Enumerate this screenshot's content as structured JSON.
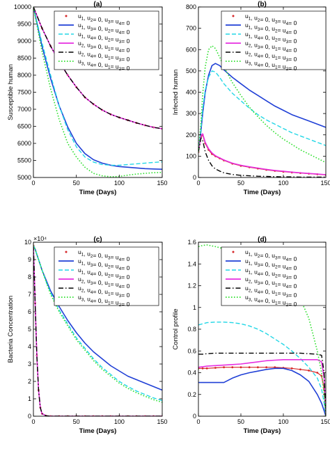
{
  "figure": {
    "legend_colors": [
      "#d62728",
      "#1f3fd6",
      "#22d7e6",
      "#e62ee0",
      "#000000",
      "#2ee02e"
    ]
  },
  "chart_data": [
    {
      "type": "line",
      "title": "(a)",
      "xlabel": "Time (Days)",
      "ylabel": "Susceptible human",
      "xlim": [
        0,
        150
      ],
      "ylim": [
        5000,
        10000
      ],
      "xticks": [
        0,
        50,
        100,
        150
      ],
      "yticks": [
        5000,
        5500,
        6000,
        6500,
        7000,
        7500,
        8000,
        8500,
        9000,
        9500,
        10000
      ],
      "legend_position": "top-right",
      "x": [
        0,
        10,
        20,
        30,
        40,
        50,
        60,
        70,
        80,
        90,
        100,
        110,
        120,
        130,
        140,
        150
      ],
      "series": [
        {
          "name": "u1, u2= 0, u3= u4= 0",
          "style": "dotted-markers",
          "color": "#d62728",
          "values": [
            10000,
            9380,
            8850,
            8400,
            8000,
            7650,
            7350,
            7150,
            6980,
            6850,
            6760,
            6680,
            6600,
            6530,
            6470,
            6430
          ]
        },
        {
          "name": "u1, u3= 0, u2= u4= 0",
          "style": "solid",
          "color": "#1f3fd6",
          "values": [
            10000,
            8850,
            7900,
            7100,
            6480,
            6000,
            5700,
            5520,
            5420,
            5360,
            5320,
            5300,
            5280,
            5260,
            5250,
            5240
          ]
        },
        {
          "name": "u1, u4= 0, u2= u3= 0",
          "style": "dashed",
          "color": "#22d7e6",
          "values": [
            10000,
            8950,
            8000,
            7100,
            6400,
            5900,
            5600,
            5450,
            5380,
            5360,
            5360,
            5380,
            5400,
            5420,
            5440,
            5460
          ]
        },
        {
          "name": "u2, u3= 0, u1= u4= 0",
          "style": "solid",
          "color": "#e62ee0",
          "values": [
            10000,
            9380,
            8850,
            8400,
            8000,
            7650,
            7350,
            7150,
            6980,
            6850,
            6760,
            6680,
            6600,
            6530,
            6470,
            6430
          ]
        },
        {
          "name": "u2, u4= 0, u1= u3= 0",
          "style": "dashdot",
          "color": "#000000",
          "values": [
            10000,
            9380,
            8850,
            8400,
            8000,
            7650,
            7350,
            7150,
            6980,
            6850,
            6760,
            6680,
            6600,
            6530,
            6470,
            6430
          ]
        },
        {
          "name": "u3, u4= 0, u1= u2= 0",
          "style": "dotted",
          "color": "#2ee02e",
          "values": [
            10000,
            8700,
            7600,
            6700,
            6000,
            5600,
            5300,
            5120,
            5050,
            5020,
            5030,
            5070,
            5100,
            5120,
            5140,
            5150
          ]
        }
      ]
    },
    {
      "type": "line",
      "title": "(b)",
      "xlabel": "Time (Days)",
      "ylabel": "Infected human",
      "xlim": [
        0,
        150
      ],
      "ylim": [
        0,
        800
      ],
      "xticks": [
        0,
        50,
        100,
        150
      ],
      "yticks": [
        0,
        100,
        200,
        300,
        400,
        500,
        600,
        700,
        800
      ],
      "legend_position": "top-right",
      "x": [
        0,
        3,
        5,
        8,
        12,
        16,
        20,
        25,
        30,
        40,
        50,
        60,
        70,
        80,
        90,
        100,
        110,
        120,
        130,
        140,
        150
      ],
      "series": [
        {
          "name": "u1, u2= 0, u3= u4= 0",
          "style": "dotted-markers",
          "color": "#d62728",
          "values": [
            120,
            190,
            200,
            160,
            130,
            110,
            100,
            90,
            80,
            65,
            55,
            48,
            42,
            36,
            31,
            27,
            24,
            21,
            18,
            15,
            12
          ]
        },
        {
          "name": "u1, u3= 0, u2= u4= 0",
          "style": "solid",
          "color": "#1f3fd6",
          "values": [
            120,
            220,
            300,
            400,
            480,
            525,
            535,
            525,
            505,
            470,
            440,
            410,
            385,
            360,
            335,
            315,
            295,
            280,
            265,
            250,
            235
          ]
        },
        {
          "name": "u1, u4= 0, u2= u3= 0",
          "style": "dashed",
          "color": "#22d7e6",
          "values": [
            120,
            230,
            320,
            410,
            470,
            500,
            495,
            470,
            440,
            395,
            360,
            325,
            295,
            270,
            250,
            230,
            210,
            195,
            180,
            165,
            150
          ]
        },
        {
          "name": "u2, u3= 0, u1= u4= 0",
          "style": "solid",
          "color": "#e62ee0",
          "values": [
            120,
            195,
            205,
            165,
            135,
            115,
            102,
            92,
            82,
            67,
            57,
            50,
            44,
            38,
            33,
            29,
            25,
            22,
            19,
            16,
            13
          ]
        },
        {
          "name": "u2, u4= 0, u1= u3= 0",
          "style": "dashdot",
          "color": "#000000",
          "values": [
            120,
            185,
            175,
            120,
            80,
            55,
            40,
            30,
            22,
            14,
            10,
            8,
            6,
            5,
            4,
            3,
            3,
            2,
            2,
            2,
            2
          ]
        },
        {
          "name": "u3, u4= 0, u1= u2= 0",
          "style": "dotted",
          "color": "#2ee02e",
          "values": [
            120,
            260,
            390,
            520,
            600,
            618,
            605,
            565,
            520,
            445,
            385,
            330,
            285,
            245,
            210,
            180,
            155,
            130,
            110,
            90,
            70
          ]
        }
      ]
    },
    {
      "type": "line",
      "title": "(c)",
      "xlabel": "Time (Days)",
      "ylabel": "Bacteria Concentration",
      "multiplier_label": "×10⁴",
      "xlim": [
        0,
        150
      ],
      "ylim": [
        0,
        10
      ],
      "xticks": [
        0,
        50,
        100,
        150
      ],
      "yticks": [
        0,
        1,
        2,
        3,
        4,
        5,
        6,
        7,
        8,
        9,
        10
      ],
      "legend_position": "top-right",
      "x": [
        0,
        2,
        4,
        6,
        8,
        10,
        15,
        20,
        30,
        40,
        50,
        60,
        70,
        80,
        90,
        100,
        110,
        120,
        130,
        140,
        150
      ],
      "series": [
        {
          "name": "u1, u2= 0, u3= u4= 0",
          "style": "dotted-markers",
          "color": "#d62728",
          "values": [
            9.8,
            6.5,
            3.5,
            1.5,
            0.5,
            0.15,
            0.02,
            0,
            0,
            0,
            0,
            0,
            0,
            0,
            0,
            0,
            0,
            0,
            0,
            0,
            0
          ]
        },
        {
          "name": "u1, u3= 0, u2= u4= 0",
          "style": "solid",
          "color": "#1f3fd6",
          "values": [
            9.8,
            9.6,
            9.3,
            9.0,
            8.7,
            8.4,
            7.8,
            7.2,
            6.3,
            5.5,
            4.8,
            4.2,
            3.7,
            3.3,
            2.9,
            2.6,
            2.3,
            2.1,
            1.9,
            1.7,
            1.5
          ]
        },
        {
          "name": "u1, u4= 0, u2= u3= 0",
          "style": "dashed",
          "color": "#22d7e6",
          "values": [
            9.8,
            9.6,
            9.3,
            9.0,
            8.7,
            8.4,
            7.7,
            7.1,
            6.1,
            5.3,
            4.5,
            3.9,
            3.3,
            2.8,
            2.4,
            2.0,
            1.7,
            1.45,
            1.25,
            1.05,
            0.9
          ]
        },
        {
          "name": "u2, u3= 0, u1= u4= 0",
          "style": "solid",
          "color": "#e62ee0",
          "values": [
            9.8,
            6.5,
            3.5,
            1.5,
            0.5,
            0.15,
            0.02,
            0,
            0,
            0,
            0,
            0,
            0,
            0,
            0,
            0,
            0,
            0,
            0,
            0,
            0
          ]
        },
        {
          "name": "u2, u4= 0, u1= u3= 0",
          "style": "dashdot",
          "color": "#000000",
          "values": [
            9.8,
            6.5,
            3.5,
            1.5,
            0.5,
            0.15,
            0.02,
            0,
            0,
            0,
            0,
            0,
            0,
            0,
            0,
            0,
            0,
            0,
            0,
            0,
            0
          ]
        },
        {
          "name": "u3, u4= 0, u1= u2= 0",
          "style": "dotted",
          "color": "#2ee02e",
          "values": [
            9.8,
            9.6,
            9.3,
            9.0,
            8.7,
            8.4,
            7.7,
            7.0,
            6.0,
            5.2,
            4.4,
            3.8,
            3.2,
            2.7,
            2.3,
            1.9,
            1.6,
            1.35,
            1.15,
            0.95,
            0.8
          ]
        }
      ]
    },
    {
      "type": "line",
      "title": "(d)",
      "xlabel": "Time (Days)",
      "ylabel": "Control profile",
      "xlim": [
        0,
        150
      ],
      "ylim": [
        0,
        1.6
      ],
      "xticks": [
        0,
        50,
        100,
        150
      ],
      "yticks": [
        0,
        0.2,
        0.4,
        0.6,
        0.8,
        1,
        1.2,
        1.4,
        1.6
      ],
      "legend_position": "top-right",
      "x": [
        0,
        5,
        10,
        20,
        30,
        40,
        50,
        60,
        70,
        80,
        90,
        100,
        110,
        120,
        130,
        140,
        145,
        148,
        150
      ],
      "series": [
        {
          "name": "u1, u2= 0, u3= u4= 0",
          "style": "dotted-markers",
          "color": "#d62728",
          "values": [
            0.44,
            0.44,
            0.44,
            0.445,
            0.45,
            0.45,
            0.45,
            0.45,
            0.45,
            0.45,
            0.45,
            0.445,
            0.44,
            0.43,
            0.42,
            0.4,
            0.37,
            0.25,
            0
          ]
        },
        {
          "name": "u1, u3= 0, u2= u4= 0",
          "style": "solid",
          "color": "#1f3fd6",
          "values": [
            0.31,
            0.31,
            0.31,
            0.31,
            0.31,
            0.35,
            0.38,
            0.4,
            0.415,
            0.43,
            0.44,
            0.44,
            0.42,
            0.38,
            0.32,
            0.2,
            0.12,
            0.05,
            0
          ]
        },
        {
          "name": "u1, u4= 0, u2= u3= 0",
          "style": "dashed",
          "color": "#22d7e6",
          "values": [
            0.84,
            0.85,
            0.86,
            0.865,
            0.865,
            0.86,
            0.85,
            0.83,
            0.8,
            0.76,
            0.71,
            0.66,
            0.6,
            0.53,
            0.45,
            0.35,
            0.25,
            0.12,
            0
          ]
        },
        {
          "name": "u2, u3= 0, u1= u4= 0",
          "style": "solid",
          "color": "#e62ee0",
          "values": [
            0.45,
            0.455,
            0.46,
            0.465,
            0.47,
            0.475,
            0.48,
            0.49,
            0.5,
            0.51,
            0.515,
            0.52,
            0.52,
            0.52,
            0.52,
            0.52,
            0.5,
            0.35,
            0
          ]
        },
        {
          "name": "u2, u4= 0, u1= u3= 0",
          "style": "dashdot",
          "color": "#000000",
          "values": [
            0.57,
            0.57,
            0.575,
            0.58,
            0.58,
            0.58,
            0.58,
            0.58,
            0.58,
            0.58,
            0.58,
            0.58,
            0.58,
            0.58,
            0.575,
            0.57,
            0.56,
            0.4,
            0
          ]
        },
        {
          "name": "u3, u4= 0, u1= u2= 0",
          "style": "dotted",
          "color": "#2ee02e",
          "values": [
            1.56,
            1.57,
            1.575,
            1.56,
            1.54,
            1.5,
            1.47,
            1.44,
            1.41,
            1.38,
            1.34,
            1.28,
            1.2,
            1.08,
            0.9,
            0.6,
            0.4,
            0.2,
            0
          ]
        }
      ]
    }
  ]
}
